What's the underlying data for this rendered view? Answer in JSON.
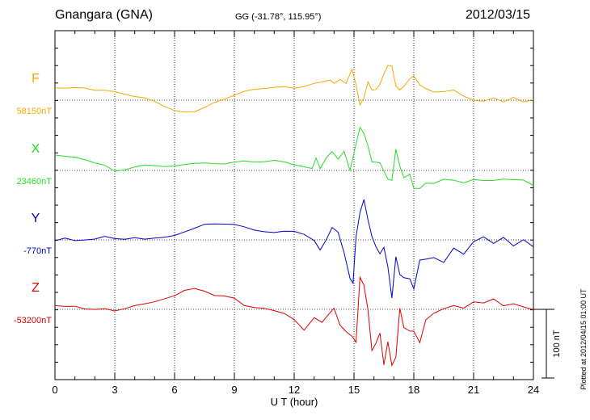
{
  "header": {
    "station": "Gnangara (GNA)",
    "coords": "GG (-31.78°, 115.95°)",
    "date": "2012/03/15"
  },
  "footer": {
    "plotted_at": "Plotted at 2012/04/15 01:00 UT",
    "scale_label": "100 nT"
  },
  "chart_data": {
    "type": "line",
    "xlabel": "U T (hour)",
    "xlim": [
      0,
      24
    ],
    "xticks": [
      "0",
      "3",
      "6",
      "9",
      "12",
      "15",
      "18",
      "21",
      "24"
    ],
    "grid": true,
    "scale_bar_nT": 100,
    "series": [
      {
        "name": "F",
        "baseline_label": "58150nT",
        "color": "#f5a800",
        "x": [
          0,
          0.5,
          1,
          1.5,
          2,
          2.5,
          3,
          3.5,
          4,
          4.5,
          5,
          5.5,
          6,
          6.5,
          7,
          7.5,
          8,
          8.5,
          9,
          9.5,
          10,
          10.5,
          11,
          11.5,
          12,
          12.5,
          13,
          13.5,
          13.8,
          14,
          14.3,
          14.6,
          14.9,
          15.1,
          15.3,
          15.5,
          15.7,
          15.9,
          16.1,
          16.3,
          16.5,
          16.7,
          16.9,
          17.1,
          17.3,
          17.5,
          17.8,
          18,
          18.3,
          18.6,
          19,
          19.5,
          20,
          20.5,
          21,
          21.5,
          22,
          22.5,
          23,
          23.5,
          24
        ],
        "values": [
          18,
          18,
          17,
          16,
          14,
          13,
          10,
          8,
          5,
          2,
          -2,
          -8,
          -15,
          -17,
          -15,
          -9,
          -3,
          3,
          9,
          13,
          16,
          18,
          18,
          18,
          17,
          19,
          22,
          26,
          30,
          24,
          30,
          26,
          45,
          25,
          -5,
          4,
          26,
          14,
          16,
          24,
          38,
          49,
          47,
          20,
          16,
          22,
          31,
          36,
          23,
          16,
          14,
          13,
          15,
          7,
          0,
          -3,
          3,
          -3,
          2,
          -4,
          0
        ]
      },
      {
        "name": "X",
        "baseline_label": "23460nT",
        "color": "#22dd22",
        "x": [
          0,
          0.5,
          1,
          1.5,
          2,
          2.5,
          3,
          3.5,
          4,
          4.5,
          5,
          5.5,
          6,
          6.5,
          7,
          7.5,
          8,
          8.5,
          9,
          9.5,
          10,
          10.5,
          11,
          11.5,
          12,
          12.5,
          12.9,
          13.1,
          13.3,
          13.6,
          13.9,
          14.2,
          14.5,
          14.8,
          15.1,
          15.3,
          15.5,
          15.7,
          15.9,
          16.1,
          16.3,
          16.5,
          16.7,
          16.9,
          17.1,
          17.3,
          17.5,
          17.8,
          18,
          18.3,
          18.6,
          19,
          19.5,
          20,
          20.5,
          21,
          21.5,
          22,
          22.5,
          23,
          23.5,
          24
        ],
        "values": [
          23,
          21,
          19,
          17,
          13,
          8,
          0,
          3,
          6,
          8,
          8,
          6,
          5,
          8,
          10,
          9,
          8,
          9,
          11,
          12,
          12,
          13,
          14,
          13,
          10,
          6,
          2,
          18,
          4,
          16,
          27,
          18,
          28,
          0,
          37,
          62,
          55,
          38,
          14,
          12,
          10,
          -2,
          -12,
          -14,
          30,
          4,
          -12,
          -7,
          -28,
          -26,
          -18,
          -20,
          -15,
          -15,
          -18,
          -14,
          -15,
          -13,
          -12,
          -13,
          -12,
          -20
        ]
      },
      {
        "name": "Y",
        "baseline_label": "-770nT",
        "color": "#0000cc",
        "x": [
          0,
          0.5,
          1,
          1.5,
          2,
          2.5,
          3,
          3.5,
          4,
          4.5,
          5,
          5.5,
          6,
          6.5,
          7,
          7.5,
          8,
          8.5,
          9,
          9.5,
          10,
          10.5,
          11,
          11.5,
          12,
          12.5,
          13,
          13.3,
          13.6,
          13.9,
          14.2,
          14.5,
          14.8,
          14.95,
          15.1,
          15.3,
          15.5,
          15.7,
          15.9,
          16.1,
          16.3,
          16.5,
          16.7,
          16.9,
          17.1,
          17.3,
          17.5,
          17.8,
          18,
          18.3,
          18.6,
          19,
          19.5,
          20,
          20.5,
          21,
          21.5,
          22,
          22.5,
          23,
          23.5,
          24
        ],
        "values": [
          0,
          2,
          -2,
          0,
          0,
          3,
          1,
          0,
          1,
          0,
          3,
          3,
          6,
          13,
          18,
          23,
          25,
          25,
          23,
          20,
          16,
          12,
          10,
          13,
          12,
          6,
          -2,
          -15,
          0,
          20,
          10,
          -20,
          -55,
          -62,
          5,
          40,
          58,
          28,
          5,
          -8,
          -18,
          -10,
          -40,
          -86,
          -25,
          -50,
          -55,
          -55,
          -70,
          -28,
          -30,
          -25,
          -32,
          -10,
          -20,
          -3,
          5,
          -5,
          2,
          -10,
          0,
          -12
        ]
      },
      {
        "name": "Z",
        "baseline_label": "-53200nT",
        "color": "#dd0000",
        "x": [
          0,
          0.5,
          1,
          1.5,
          2,
          2.5,
          3,
          3.5,
          4,
          4.5,
          5,
          5.5,
          6,
          6.5,
          7,
          7.5,
          8,
          8.5,
          9,
          9.5,
          10,
          10.5,
          11,
          11.5,
          12,
          12.5,
          13,
          13.4,
          13.8,
          14,
          14.3,
          14.6,
          14.9,
          15.1,
          15.3,
          15.5,
          15.7,
          15.9,
          16.1,
          16.3,
          16.5,
          16.7,
          16.9,
          17.1,
          17.3,
          17.5,
          17.8,
          18,
          18.3,
          18.6,
          19,
          19.5,
          20,
          20.5,
          21,
          21.5,
          22,
          22.5,
          23,
          23.5,
          24
        ],
        "values": [
          5,
          3,
          5,
          2,
          0,
          2,
          0,
          2,
          6,
          10,
          12,
          15,
          20,
          28,
          29,
          25,
          20,
          18,
          14,
          5,
          2,
          0,
          -2,
          -5,
          -15,
          -30,
          -10,
          -20,
          -5,
          2,
          -22,
          -34,
          -40,
          -50,
          45,
          35,
          0,
          -60,
          -50,
          -35,
          -80,
          -45,
          -80,
          -70,
          0,
          -28,
          -32,
          -32,
          -50,
          -15,
          -8,
          0,
          5,
          0,
          10,
          10,
          15,
          5,
          10,
          5,
          0
        ]
      }
    ]
  }
}
